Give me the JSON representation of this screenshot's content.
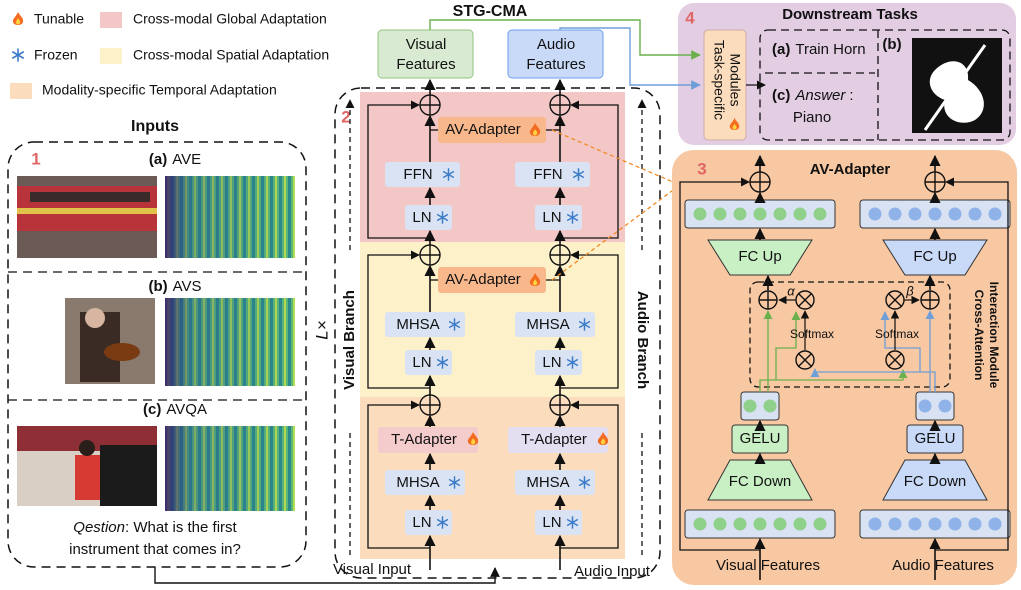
{
  "legend": {
    "tunable": "Tunable",
    "frozen": "Frozen",
    "global": "Cross-modal Global Adaptation",
    "spatial": "Cross-modal Spatial Adaptation",
    "temporal": "Modality-specific Temporal Adaptation"
  },
  "title": "STG-CMA",
  "inputs": {
    "heading": "Inputs",
    "number": "1",
    "tasks": [
      [
        "(a)",
        "AVE"
      ],
      [
        "(b)",
        "AVS"
      ],
      [
        "(c)",
        "AVQA"
      ]
    ],
    "question_label": "Qestion",
    "question": [
      ": What is the first",
      "instrument that comes in?"
    ]
  },
  "backbone": {
    "number": "2",
    "repeat": "L×",
    "visual_branch": "Visual Branch",
    "audio_branch": "Audio Branch",
    "outputs": [
      [
        "Visual",
        "Features"
      ],
      [
        "Audio",
        "Features"
      ]
    ],
    "inputs": [
      "Visual Input",
      "Audio Input"
    ],
    "av_adapters": [
      "AV-Adapter",
      "AV-Adapter"
    ],
    "columns": [
      {
        "ffn": "FFN",
        "ln": [
          "LN",
          "LN",
          "LN"
        ],
        "mhsa": [
          "MHSA",
          "MHSA"
        ],
        "t_adapter": "T-Adapter"
      },
      {
        "ffn": "FFN",
        "ln": [
          "LN",
          "LN",
          "LN"
        ],
        "mhsa": [
          "MHSA",
          "MHSA"
        ],
        "t_adapter": "T-Adapter"
      }
    ]
  },
  "downstream": {
    "number": "4",
    "heading": "Downstream Tasks",
    "modules": [
      "Task-specific",
      "Modules"
    ],
    "a_tag": "(a)",
    "a": "Train Horn",
    "b_tag": "(b)",
    "c_tag": "(c)",
    "c_answer": "Answer",
    "c_colon": ":",
    "c_value": "Piano"
  },
  "adapter": {
    "number": "3",
    "heading": "AV-Adapter",
    "fc_up": [
      "FC Up",
      "FC Up"
    ],
    "fc_down": [
      "FC Down",
      "FC Down"
    ],
    "gelu": [
      "GELU",
      "GELU"
    ],
    "softmax": [
      "Softmax",
      "Softmax"
    ],
    "alpha": "α",
    "beta": "β",
    "module": [
      "Cross-Attention",
      "Interaction Module"
    ],
    "features": [
      "Visual Features",
      "Audio Features"
    ]
  }
}
